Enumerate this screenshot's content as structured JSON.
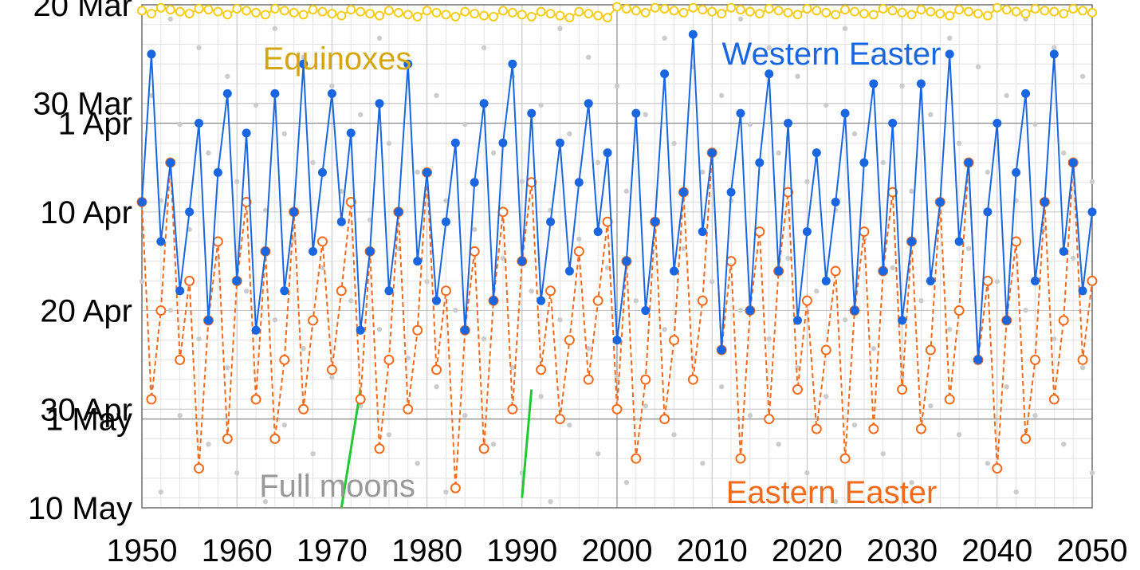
{
  "chart_data": {
    "type": "line",
    "title": "",
    "xlabel": "",
    "ylabel": "",
    "x": [
      1950,
      1951,
      1952,
      1953,
      1954,
      1955,
      1956,
      1957,
      1958,
      1959,
      1960,
      1961,
      1962,
      1963,
      1964,
      1965,
      1966,
      1967,
      1968,
      1969,
      1970,
      1971,
      1972,
      1973,
      1974,
      1975,
      1976,
      1977,
      1978,
      1979,
      1980,
      1981,
      1982,
      1983,
      1984,
      1985,
      1986,
      1987,
      1988,
      1989,
      1990,
      1991,
      1992,
      1993,
      1994,
      1995,
      1996,
      1997,
      1998,
      1999,
      2000,
      2001,
      2002,
      2003,
      2004,
      2005,
      2006,
      2007,
      2008,
      2009,
      2010,
      2011,
      2012,
      2013,
      2014,
      2015,
      2016,
      2017,
      2018,
      2019,
      2020,
      2021,
      2022,
      2023,
      2024,
      2025,
      2026,
      2027,
      2028,
      2029,
      2030,
      2031,
      2032,
      2033,
      2034,
      2035,
      2036,
      2037,
      2038,
      2039,
      2040,
      2041,
      2042,
      2043,
      2044,
      2045,
      2046,
      2047,
      2048,
      2049,
      2050
    ],
    "xlim": [
      1950,
      2050
    ],
    "x_ticks": [
      "1950",
      "1960",
      "1970",
      "1980",
      "1990",
      "2000",
      "2010",
      "2020",
      "2030",
      "2040",
      "2050"
    ],
    "ylim_dates": [
      "20 Mar",
      "10 May"
    ],
    "y_ticks": [
      "20 Mar",
      "30 Mar",
      "1 Apr",
      "10 Apr",
      "20 Apr",
      "30 Apr",
      "1 May",
      "10 May"
    ],
    "series": [
      {
        "name": "Western Easter",
        "color": "#1a66e0",
        "style": "solid",
        "marker": "filled-circle",
        "values": [
          "9 Apr",
          "25 Mar",
          "13 Apr",
          "5 Apr",
          "18 Apr",
          "10 Apr",
          "1 Apr",
          "21 Apr",
          "6 Apr",
          "29 Mar",
          "17 Apr",
          "2 Apr",
          "22 Apr",
          "14 Apr",
          "29 Mar",
          "18 Apr",
          "10 Apr",
          "26 Mar",
          "14 Apr",
          "6 Apr",
          "29 Mar",
          "11 Apr",
          "2 Apr",
          "22 Apr",
          "14 Apr",
          "30 Mar",
          "18 Apr",
          "10 Apr",
          "26 Mar",
          "15 Apr",
          "6 Apr",
          "19 Apr",
          "11 Apr",
          "3 Apr",
          "22 Apr",
          "7 Apr",
          "30 Mar",
          "19 Apr",
          "3 Apr",
          "26 Mar",
          "15 Apr",
          "31 Mar",
          "19 Apr",
          "11 Apr",
          "3 Apr",
          "16 Apr",
          "7 Apr",
          "30 Mar",
          "12 Apr",
          "4 Apr",
          "23 Apr",
          "15 Apr",
          "31 Mar",
          "20 Apr",
          "11 Apr",
          "27 Mar",
          "16 Apr",
          "8 Apr",
          "23 Mar",
          "12 Apr",
          "4 Apr",
          "24 Apr",
          "8 Apr",
          "31 Mar",
          "20 Apr",
          "5 Apr",
          "27 Mar",
          "16 Apr",
          "1 Apr",
          "21 Apr",
          "12 Apr",
          "4 Apr",
          "17 Apr",
          "9 Apr",
          "31 Mar",
          "20 Apr",
          "5 Apr",
          "28 Mar",
          "16 Apr",
          "1 Apr",
          "21 Apr",
          "13 Apr",
          "28 Mar",
          "17 Apr",
          "9 Apr",
          "25 Mar",
          "13 Apr",
          "5 Apr",
          "25 Apr",
          "10 Apr",
          "1 Apr",
          "21 Apr",
          "6 Apr",
          "29 Mar",
          "17 Apr",
          "9 Apr",
          "25 Mar",
          "14 Apr",
          "5 Apr",
          "18 Apr",
          "10 Apr"
        ]
      },
      {
        "name": "Eastern Easter",
        "color": "#f26a1b",
        "style": "dashed",
        "marker": "open-circle",
        "values": [
          "9 Apr",
          "29 Apr",
          "20 Apr",
          "5 Apr",
          "25 Apr",
          "17 Apr",
          "6 May",
          "21 Apr",
          "13 Apr",
          "3 May",
          "17 Apr",
          "9 Apr",
          "29 Apr",
          "14 Apr",
          "3 May",
          "25 Apr",
          "10 Apr",
          "30 Apr",
          "21 Apr",
          "13 Apr",
          "26 Apr",
          "18 Apr",
          "9 Apr",
          "29 Apr",
          "14 Apr",
          "4 May",
          "25 Apr",
          "10 Apr",
          "30 Apr",
          "22 Apr",
          "6 Apr",
          "26 Apr",
          "18 Apr",
          "8 May",
          "22 Apr",
          "14 Apr",
          "4 May",
          "19 Apr",
          "10 Apr",
          "30 Apr",
          "15 Apr",
          "7 Apr",
          "26 Apr",
          "18 Apr",
          "1 May",
          "23 Apr",
          "14 Apr",
          "27 Apr",
          "19 Apr",
          "11 Apr",
          "30 Apr",
          "15 Apr",
          "5 May",
          "27 Apr",
          "11 Apr",
          "1 May",
          "23 Apr",
          "8 Apr",
          "27 Apr",
          "19 Apr",
          "4 Apr",
          "24 Apr",
          "15 Apr",
          "5 May",
          "20 Apr",
          "12 Apr",
          "1 May",
          "16 Apr",
          "8 Apr",
          "28 Apr",
          "19 Apr",
          "2 May",
          "24 Apr",
          "16 Apr",
          "5 May",
          "20 Apr",
          "12 Apr",
          "2 May",
          "16 Apr",
          "8 Apr",
          "28 Apr",
          "13 Apr",
          "2 May",
          "24 Apr",
          "9 Apr",
          "29 Apr",
          "20 Apr",
          "5 Apr",
          "25 Apr",
          "17 Apr",
          "6 May",
          "21 Apr",
          "13 Apr",
          "3 May",
          "25 Apr",
          "9 Apr",
          "29 Apr",
          "21 Apr",
          "5 Apr",
          "25 Apr",
          "17 Apr"
        ]
      },
      {
        "name": "Equinoxes",
        "color": "#f5cc1a",
        "style": "solid",
        "marker": "open-circle",
        "values": [
          20.6,
          20.9,
          20.3,
          20.5,
          20.7,
          20.9,
          20.4,
          20.5,
          20.7,
          21.0,
          20.4,
          20.6,
          20.8,
          21.0,
          20.4,
          20.6,
          20.8,
          21.0,
          20.5,
          20.7,
          20.9,
          21.1,
          20.5,
          20.7,
          20.9,
          21.1,
          20.6,
          20.8,
          21.0,
          21.2,
          20.6,
          20.8,
          21.0,
          21.2,
          20.7,
          20.9,
          21.1,
          21.2,
          20.6,
          20.8,
          21.0,
          21.2,
          20.7,
          20.9,
          21.1,
          21.3,
          20.7,
          20.9,
          21.1,
          21.3,
          20.2,
          20.4,
          20.6,
          20.8,
          20.3,
          20.4,
          20.6,
          20.8,
          20.3,
          20.5,
          20.7,
          20.9,
          20.3,
          20.5,
          20.7,
          20.9,
          20.4,
          20.6,
          20.8,
          21.0,
          20.4,
          20.6,
          20.8,
          21.0,
          20.5,
          20.7,
          20.9,
          21.0,
          20.4,
          20.6,
          20.8,
          21.0,
          20.5,
          20.7,
          20.9,
          21.1,
          20.5,
          20.7,
          20.9,
          21.1,
          20.3,
          20.5,
          20.7,
          20.9,
          20.4,
          20.6,
          20.7,
          20.9,
          20.4,
          20.6,
          20.8
        ]
      }
    ],
    "annotations": {
      "equinoxes_label": "Equinoxes",
      "western_label": "Western Easter",
      "eastern_label": "Eastern Easter",
      "full_moons_label": "Full moons"
    },
    "colors": {
      "western": "#1a66e0",
      "eastern": "#f26a1b",
      "equinox_line": "#f5cc1a",
      "equinox_text": "#d4a611",
      "full_moon_dot": "#cccccc",
      "full_moon_text": "#999999",
      "full_moon_link": "#22c832"
    },
    "grid": true
  }
}
